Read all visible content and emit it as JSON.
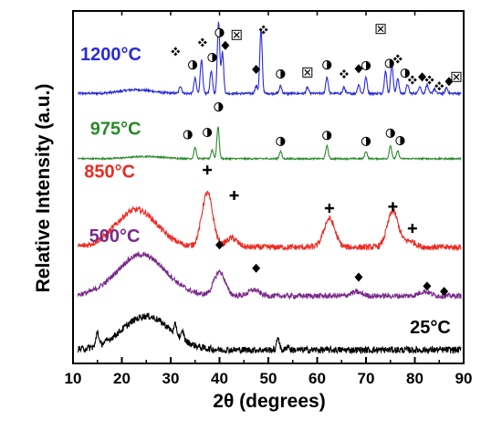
{
  "chart_data": {
    "type": "line",
    "title": "",
    "xlabel": "2θ (degrees)",
    "ylabel": "Relative Intensity (a.u.)",
    "xlim": [
      10,
      90
    ],
    "xticks": [
      "10",
      "20",
      "30",
      "40",
      "50",
      "60",
      "70",
      "80",
      "90"
    ],
    "yticks": [],
    "grid": false,
    "legend": "none",
    "colors": {
      "1200": "#2a2ad8",
      "975": "#2a8a2a",
      "850": "#ee2a22",
      "500": "#7a2a8a",
      "25": "#000000"
    },
    "marker_types": {
      "circle": "half-filled circle",
      "box": "boxed x",
      "clover": "four-diamond symbol",
      "diamond": "filled diamond",
      "plus": "plus sign"
    },
    "series": [
      {
        "name": "1200°C",
        "color_key": "1200",
        "baseline": 3.6,
        "hump": {
          "center": 23,
          "width": 4.5,
          "height": 0.05
        },
        "noise": 0.015,
        "peaks": [
          [
            32,
            0.1
          ],
          [
            35,
            0.2
          ],
          [
            36.3,
            0.45
          ],
          [
            38.3,
            0.3
          ],
          [
            39.8,
            0.95
          ],
          [
            40.6,
            0.55
          ],
          [
            47.5,
            0.1
          ],
          [
            48.5,
            0.85
          ],
          [
            52.5,
            0.1
          ],
          [
            58,
            0.08
          ],
          [
            62,
            0.22
          ],
          [
            65.5,
            0.08
          ],
          [
            68.5,
            0.12
          ],
          [
            70,
            0.22
          ],
          [
            74,
            0.3
          ],
          [
            75.3,
            0.4
          ],
          [
            76.5,
            0.2
          ],
          [
            78.5,
            0.12
          ],
          [
            81,
            0.1
          ],
          [
            82.5,
            0.12
          ],
          [
            84,
            0.06
          ],
          [
            86.5,
            0.08
          ]
        ],
        "markers": [
          {
            "x": 31,
            "y": 4.16,
            "type": "clover"
          },
          {
            "x": 34.5,
            "y": 3.98,
            "type": "circle"
          },
          {
            "x": 36.5,
            "y": 4.28,
            "type": "clover"
          },
          {
            "x": 38.5,
            "y": 4.08,
            "type": "circle"
          },
          {
            "x": 40,
            "y": 4.41,
            "type": "circle"
          },
          {
            "x": 41.2,
            "y": 4.24,
            "type": "diamond"
          },
          {
            "x": 43.5,
            "y": 4.38,
            "type": "box"
          },
          {
            "x": 47.5,
            "y": 3.92,
            "type": "diamond"
          },
          {
            "x": 49,
            "y": 4.45,
            "type": "clover"
          },
          {
            "x": 52.5,
            "y": 3.86,
            "type": "circle"
          },
          {
            "x": 58,
            "y": 3.88,
            "type": "box"
          },
          {
            "x": 62,
            "y": 3.98,
            "type": "circle"
          },
          {
            "x": 65.5,
            "y": 3.86,
            "type": "clover"
          },
          {
            "x": 68.5,
            "y": 3.93,
            "type": "diamond"
          },
          {
            "x": 70,
            "y": 3.97,
            "type": "circle"
          },
          {
            "x": 73,
            "y": 4.46,
            "type": "box"
          },
          {
            "x": 74.8,
            "y": 4.0,
            "type": "circle"
          },
          {
            "x": 76.5,
            "y": 4.06,
            "type": "clover"
          },
          {
            "x": 78,
            "y": 3.87,
            "type": "circle"
          },
          {
            "x": 79.5,
            "y": 3.78,
            "type": "clover"
          },
          {
            "x": 81.5,
            "y": 3.82,
            "type": "diamond"
          },
          {
            "x": 83,
            "y": 3.78,
            "type": "clover"
          },
          {
            "x": 85,
            "y": 3.7,
            "type": "clover"
          },
          {
            "x": 87,
            "y": 3.76,
            "type": "diamond"
          },
          {
            "x": 88.5,
            "y": 3.82,
            "type": "box"
          }
        ]
      },
      {
        "name": "975°C",
        "color_key": "975",
        "baseline": 2.73,
        "hump": {
          "center": 25,
          "width": 5,
          "height": 0.03
        },
        "noise": 0.01,
        "peaks": [
          [
            35,
            0.15
          ],
          [
            38.5,
            0.12
          ],
          [
            39.7,
            0.42
          ],
          [
            52.5,
            0.1
          ],
          [
            62,
            0.18
          ],
          [
            70,
            0.1
          ],
          [
            75,
            0.18
          ],
          [
            76.5,
            0.1
          ]
        ],
        "markers": [
          {
            "x": 33.5,
            "y": 3.05,
            "type": "circle"
          },
          {
            "x": 37.5,
            "y": 3.08,
            "type": "circle"
          },
          {
            "x": 39.8,
            "y": 3.42,
            "type": "circle"
          },
          {
            "x": 52.5,
            "y": 2.96,
            "type": "circle"
          },
          {
            "x": 62,
            "y": 3.04,
            "type": "circle"
          },
          {
            "x": 70,
            "y": 2.96,
            "type": "circle"
          },
          {
            "x": 75,
            "y": 3.07,
            "type": "circle"
          },
          {
            "x": 77,
            "y": 2.97,
            "type": "circle"
          }
        ]
      },
      {
        "name": "850°C",
        "color_key": "850",
        "baseline": 1.55,
        "hump": {
          "center": 23,
          "width": 6,
          "height": 0.5
        },
        "noise": 0.04,
        "peaks": [
          [
            37.5,
            0.72
          ],
          [
            42.5,
            0.12
          ],
          [
            62.5,
            0.38
          ],
          [
            75.5,
            0.48
          ],
          [
            79,
            0.08
          ]
        ],
        "markers": [
          {
            "x": 37.5,
            "y": 2.58,
            "type": "plus"
          },
          {
            "x": 43,
            "y": 2.24,
            "type": "plus"
          },
          {
            "x": 62.5,
            "y": 2.07,
            "type": "plus"
          },
          {
            "x": 75.5,
            "y": 2.09,
            "type": "plus"
          },
          {
            "x": 79.5,
            "y": 1.8,
            "type": "plus"
          }
        ]
      },
      {
        "name": "500°C",
        "color_key": "500",
        "baseline": 0.9,
        "hump": {
          "center": 24,
          "width": 7,
          "height": 0.55
        },
        "noise": 0.035,
        "peaks": [
          [
            40,
            0.32
          ],
          [
            47,
            0.08
          ],
          [
            68,
            0.05
          ],
          [
            82,
            0.06
          ]
        ],
        "markers": [
          {
            "x": 40,
            "y": 1.58,
            "type": "diamond"
          },
          {
            "x": 47.5,
            "y": 1.27,
            "type": "diamond"
          },
          {
            "x": 68.5,
            "y": 1.15,
            "type": "diamond"
          },
          {
            "x": 82.5,
            "y": 1.03,
            "type": "diamond"
          },
          {
            "x": 86,
            "y": 0.96,
            "type": "diamond"
          }
        ]
      },
      {
        "name": "25°C",
        "color_key": "25",
        "baseline": 0.18,
        "hump": {
          "center": 25,
          "width": 7,
          "height": 0.45
        },
        "noise": 0.045,
        "peaks": [
          [
            15,
            0.2
          ],
          [
            31,
            0.12
          ],
          [
            32.5,
            0.1
          ],
          [
            52,
            0.18
          ],
          [
            54,
            0.06
          ]
        ],
        "markers": []
      }
    ],
    "labels": [
      {
        "text": "1200°C",
        "color_key": "1200",
        "x": 11.5,
        "y": 4.04
      },
      {
        "text": "975°C",
        "color_key": "975",
        "x": 13.5,
        "y": 3.05
      },
      {
        "text": "850°C",
        "color_key": "850",
        "x": 12.3,
        "y": 2.48
      },
      {
        "text": "500°C",
        "color_key": "500",
        "x": 13.3,
        "y": 1.62
      },
      {
        "text": "25°C",
        "color_key": "25",
        "x": 79,
        "y": 0.4
      }
    ]
  }
}
